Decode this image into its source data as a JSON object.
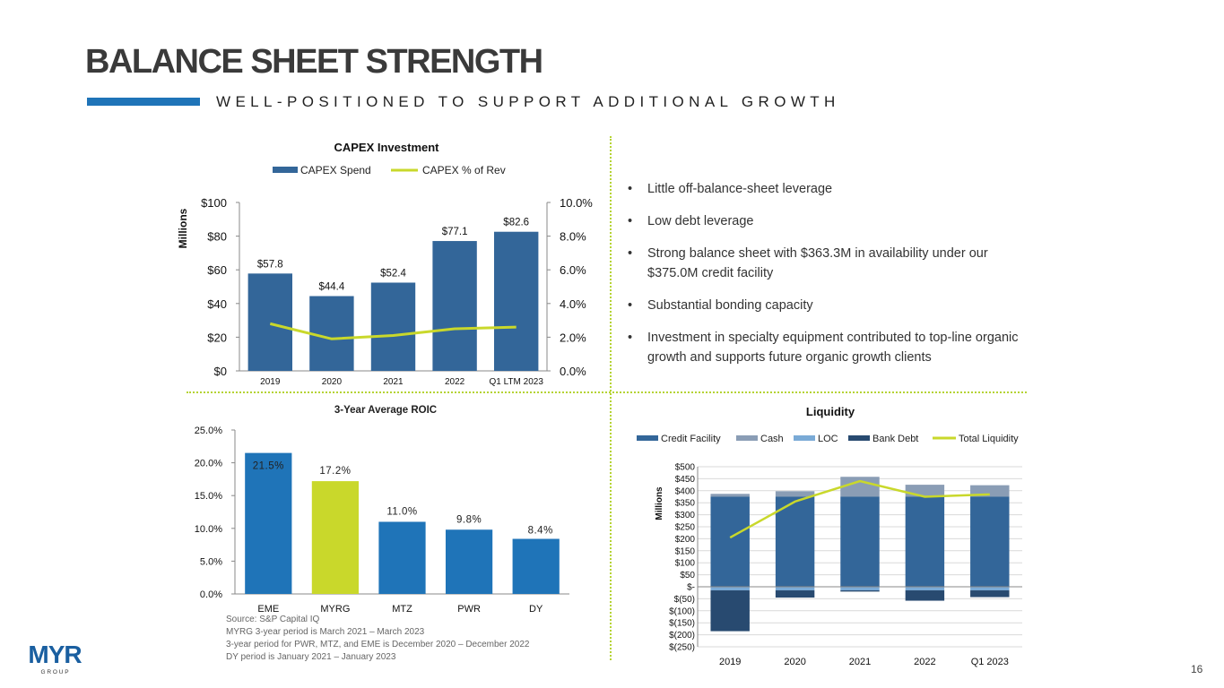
{
  "header": {
    "title": "BALANCE SHEET STRENGTH",
    "subtitle": "WELL-POSITIONED TO SUPPORT ADDITIONAL GROWTH"
  },
  "colors": {
    "blue": "#336699",
    "green": "#c9d82b",
    "accent": "#1f74b8",
    "divider": "#b5d334"
  },
  "bullets": [
    "Little off-balance-sheet leverage",
    "Low debt leverage",
    "Strong balance sheet with $363.3M in availability under our $375.0M credit facility",
    "Substantial bonding capacity",
    "Investment in specialty equipment contributed to top-line organic growth and supports future organic growth clients"
  ],
  "source_notes": [
    "Source: S&P Capital IQ",
    "MYRG 3-year period is March 2021 – March 2023",
    "3-year period for PWR, MTZ, and EME is December 2020 – December 2022",
    "DY period is January 2021 – January 2023"
  ],
  "logo": {
    "text": "MYR",
    "subtext": "G R O U P"
  },
  "page_number": "16",
  "chart_data": [
    {
      "type": "bar",
      "title": "CAPEX Investment",
      "categories": [
        "2019",
        "2020",
        "2021",
        "2022",
        "Q1 LTM 2023"
      ],
      "series": [
        {
          "name": "CAPEX Spend",
          "type": "bar",
          "axis": "left",
          "values": [
            57.8,
            44.4,
            52.4,
            77.1,
            82.6
          ],
          "labels": [
            "$57.8",
            "$44.4",
            "$52.4",
            "$77.1",
            "$82.6"
          ]
        },
        {
          "name": "CAPEX % of Rev",
          "type": "line",
          "axis": "right",
          "values": [
            2.8,
            1.9,
            2.1,
            2.5,
            2.6
          ]
        }
      ],
      "ylabel": "Millions",
      "ylim": [
        0,
        100
      ],
      "yticks": [
        "$0",
        "$20",
        "$40",
        "$60",
        "$80",
        "$100"
      ],
      "y2lim": [
        0,
        10
      ],
      "y2ticks": [
        "0.0%",
        "2.0%",
        "4.0%",
        "6.0%",
        "8.0%",
        "10.0%"
      ],
      "legend": "top"
    },
    {
      "type": "bar",
      "title": "3-Year Average ROIC",
      "categories": [
        "EME",
        "MYRG",
        "MTZ",
        "PWR",
        "DY"
      ],
      "values": [
        21.5,
        17.2,
        11.0,
        9.8,
        8.4
      ],
      "labels": [
        "21.5%",
        "17.2%",
        "11.0%",
        "9.8%",
        "8.4%"
      ],
      "highlight": "MYRG",
      "ylim": [
        0,
        25
      ],
      "yticks": [
        "0.0%",
        "5.0%",
        "10.0%",
        "15.0%",
        "20.0%",
        "25.0%"
      ]
    },
    {
      "type": "bar",
      "stacked": true,
      "title": "Liquidity",
      "categories": [
        "2019",
        "2020",
        "2021",
        "2022",
        "Q1 2023"
      ],
      "series": [
        {
          "name": "Credit Facility",
          "values": [
            375,
            375,
            375,
            375,
            375
          ],
          "color": "#336699"
        },
        {
          "name": "Cash",
          "values": [
            12,
            23,
            83,
            50,
            48
          ],
          "color": "#8a9db5"
        },
        {
          "name": "LOC",
          "values": [
            -15,
            -15,
            -15,
            -15,
            -15
          ],
          "color": "#7aaad6"
        },
        {
          "name": "Bank Debt",
          "values": [
            -170,
            -30,
            -5,
            -43,
            -28
          ],
          "color": "#284a70"
        },
        {
          "name": "Total Liquidity",
          "type": "line",
          "values": [
            205,
            355,
            440,
            375,
            385
          ],
          "color": "#c9d82b"
        }
      ],
      "ylabel": "Millions",
      "ylim": [
        -250,
        500
      ],
      "yticks": [
        "$(250)",
        "$(200)",
        "$(150)",
        "$(100)",
        "$(50)",
        "$-",
        "$50",
        "$100",
        "$150",
        "$200",
        "$250",
        "$300",
        "$350",
        "$400",
        "$450",
        "$500"
      ],
      "legend": "top"
    }
  ]
}
